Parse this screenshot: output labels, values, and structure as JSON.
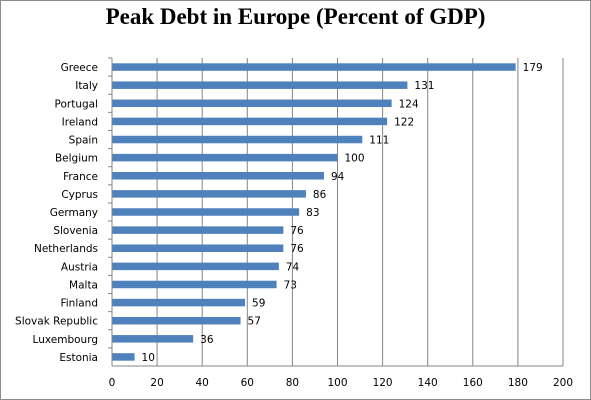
{
  "chart_data": {
    "type": "bar",
    "orientation": "horizontal",
    "title": "Peak Debt in Europe (Percent of GDP)",
    "categories": [
      "Greece",
      "Italy",
      "Portugal",
      "Ireland",
      "Spain",
      "Belgium",
      "France",
      "Cyprus",
      "Germany",
      "Slovenia",
      "Netherlands",
      "Austria",
      "Malta",
      "Finland",
      "Slovak Republic",
      "Luxembourg",
      "Estonia"
    ],
    "values": [
      179,
      131,
      124,
      122,
      111,
      100,
      94,
      86,
      83,
      76,
      76,
      74,
      73,
      59,
      57,
      36,
      10
    ],
    "xlim": [
      0,
      200
    ],
    "xticks": [
      "0",
      "20",
      "40",
      "60",
      "80",
      "100",
      "120",
      "140",
      "160",
      "180",
      "200"
    ],
    "grid": "vertical",
    "bar_color": "#4f81bd",
    "legend": "none"
  }
}
